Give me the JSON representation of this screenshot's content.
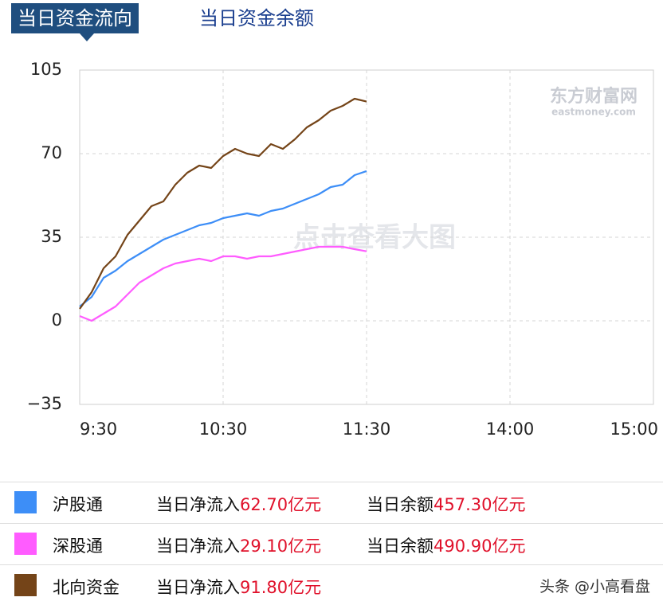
{
  "tabs": [
    "当日资金流向",
    "当日资金余额"
  ],
  "chart_data": {
    "type": "line",
    "annotations": [
      "东方财富网",
      "eastmoney.com",
      "点击查看大图"
    ],
    "x": [
      0,
      5,
      10,
      15,
      20,
      25,
      30,
      35,
      40,
      45,
      50,
      55,
      60,
      65,
      70,
      75,
      80,
      85,
      90,
      95,
      100,
      105,
      110,
      115,
      120
    ],
    "xlim": [
      0,
      240
    ],
    "xticks": [
      {
        "value": 0,
        "label": "9:30"
      },
      {
        "value": 60,
        "label": "10:30"
      },
      {
        "value": 120,
        "label": "11:30"
      },
      {
        "value": 180,
        "label": "14:00"
      },
      {
        "value": 240,
        "label": "15:00"
      }
    ],
    "ylim": [
      -35,
      105
    ],
    "yticks": [
      {
        "value": -35,
        "label": "−35"
      },
      0,
      35,
      70,
      105
    ],
    "grid": true,
    "series": [
      {
        "name": "沪股通",
        "color": "#3d8ef7",
        "values": [
          6,
          10,
          18,
          21,
          25,
          28,
          31,
          34,
          36,
          38,
          40,
          41,
          43,
          44,
          45,
          44,
          46,
          47,
          49,
          51,
          53,
          56,
          57,
          61,
          62.7
        ]
      },
      {
        "name": "深股通",
        "color": "#ff5cff",
        "values": [
          2,
          0,
          3,
          6,
          11,
          16,
          19,
          22,
          24,
          25,
          26,
          25,
          27,
          27,
          26,
          27,
          27,
          28,
          29,
          30,
          31,
          31,
          31,
          30,
          29.1
        ]
      },
      {
        "name": "北向资金",
        "color": "#744418",
        "values": [
          5,
          12,
          22,
          27,
          36,
          42,
          48,
          50,
          57,
          62,
          65,
          64,
          69,
          72,
          70,
          69,
          74,
          72,
          76,
          81,
          84,
          88,
          90,
          93,
          91.8
        ]
      }
    ]
  },
  "summary": {
    "inflow_label": "当日净流入",
    "balance_label": "当日余额",
    "rows": [
      {
        "inflow": "62.70亿元",
        "balance": "457.30亿元"
      },
      {
        "inflow": "29.10亿元",
        "balance": "490.90亿元"
      },
      {
        "inflow": "91.80亿元"
      }
    ]
  },
  "credit": "头条 @小高看盘"
}
